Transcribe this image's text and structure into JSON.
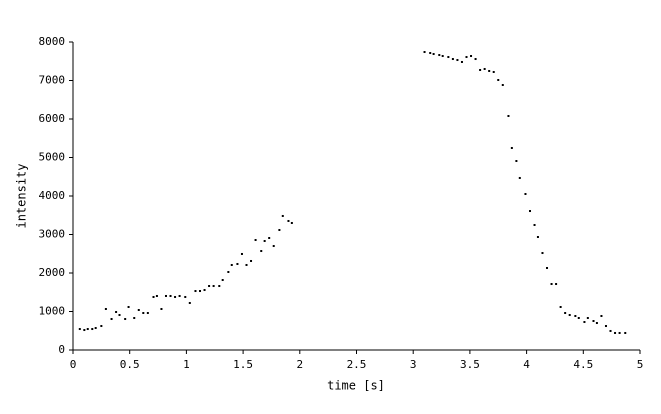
{
  "chart_data": {
    "type": "scatter",
    "x_label": "time [s]",
    "y_label": "intensity",
    "color": "#000000",
    "x": [
      0.06,
      0.1,
      0.13,
      0.17,
      0.2,
      0.25,
      0.29,
      0.34,
      0.38,
      0.41,
      0.46,
      0.49,
      0.54,
      0.58,
      0.62,
      0.66,
      0.71,
      0.74,
      0.78,
      0.82,
      0.86,
      0.9,
      0.94,
      0.99,
      1.03,
      1.08,
      1.12,
      1.16,
      1.2,
      1.24,
      1.29,
      1.32,
      1.37,
      1.4,
      1.45,
      1.49,
      1.53,
      1.57,
      1.61,
      1.66,
      1.69,
      1.73,
      1.77,
      1.82,
      1.85,
      1.9,
      1.93,
      3.1,
      3.15,
      3.18,
      3.23,
      3.26,
      3.31,
      3.35,
      3.39,
      3.43,
      3.47,
      3.51,
      3.55,
      3.59,
      3.63,
      3.67,
      3.71,
      3.75,
      3.79,
      3.84,
      3.87,
      3.91,
      3.94,
      3.99,
      4.03,
      4.07,
      4.1,
      4.14,
      4.18,
      4.22,
      4.26,
      4.3,
      4.34,
      4.38,
      4.43,
      4.46,
      4.51,
      4.54,
      4.59,
      4.62,
      4.66,
      4.7,
      4.74,
      4.78,
      4.82,
      4.87
    ],
    "y": [
      545,
      519,
      545,
      545,
      571,
      623,
      1065,
      805,
      987,
      909,
      805,
      1117,
      831,
      1039,
      961,
      961,
      1377,
      1403,
      1065,
      1403,
      1403,
      1377,
      1403,
      1377,
      1221,
      1532,
      1532,
      1558,
      1662,
      1662,
      1662,
      1818,
      2026,
      2208,
      2234,
      2494,
      2208,
      2312,
      2857,
      2571,
      2831,
      2909,
      2701,
      3117,
      3481,
      3351,
      3299,
      7740,
      7714,
      7688,
      7662,
      7636,
      7610,
      7558,
      7532,
      7481,
      7610,
      7636,
      7558,
      7273,
      7299,
      7247,
      7221,
      7013,
      6883,
      6078,
      5247,
      4909,
      4468,
      4052,
      3610,
      3247,
      2935,
      2519,
      2130,
      1714,
      1714,
      1117,
      961,
      909,
      883,
      831,
      727,
      831,
      753,
      701,
      883,
      623,
      494,
      442,
      442,
      442
    ],
    "xlim": [
      0,
      5
    ],
    "ylim": [
      0,
      8000
    ],
    "xticks": [
      0,
      0.5,
      1,
      1.5,
      2,
      2.5,
      3,
      3.5,
      4,
      4.5,
      5
    ],
    "yticks": [
      0,
      1000,
      2000,
      3000,
      4000,
      5000,
      6000,
      7000,
      8000
    ]
  }
}
